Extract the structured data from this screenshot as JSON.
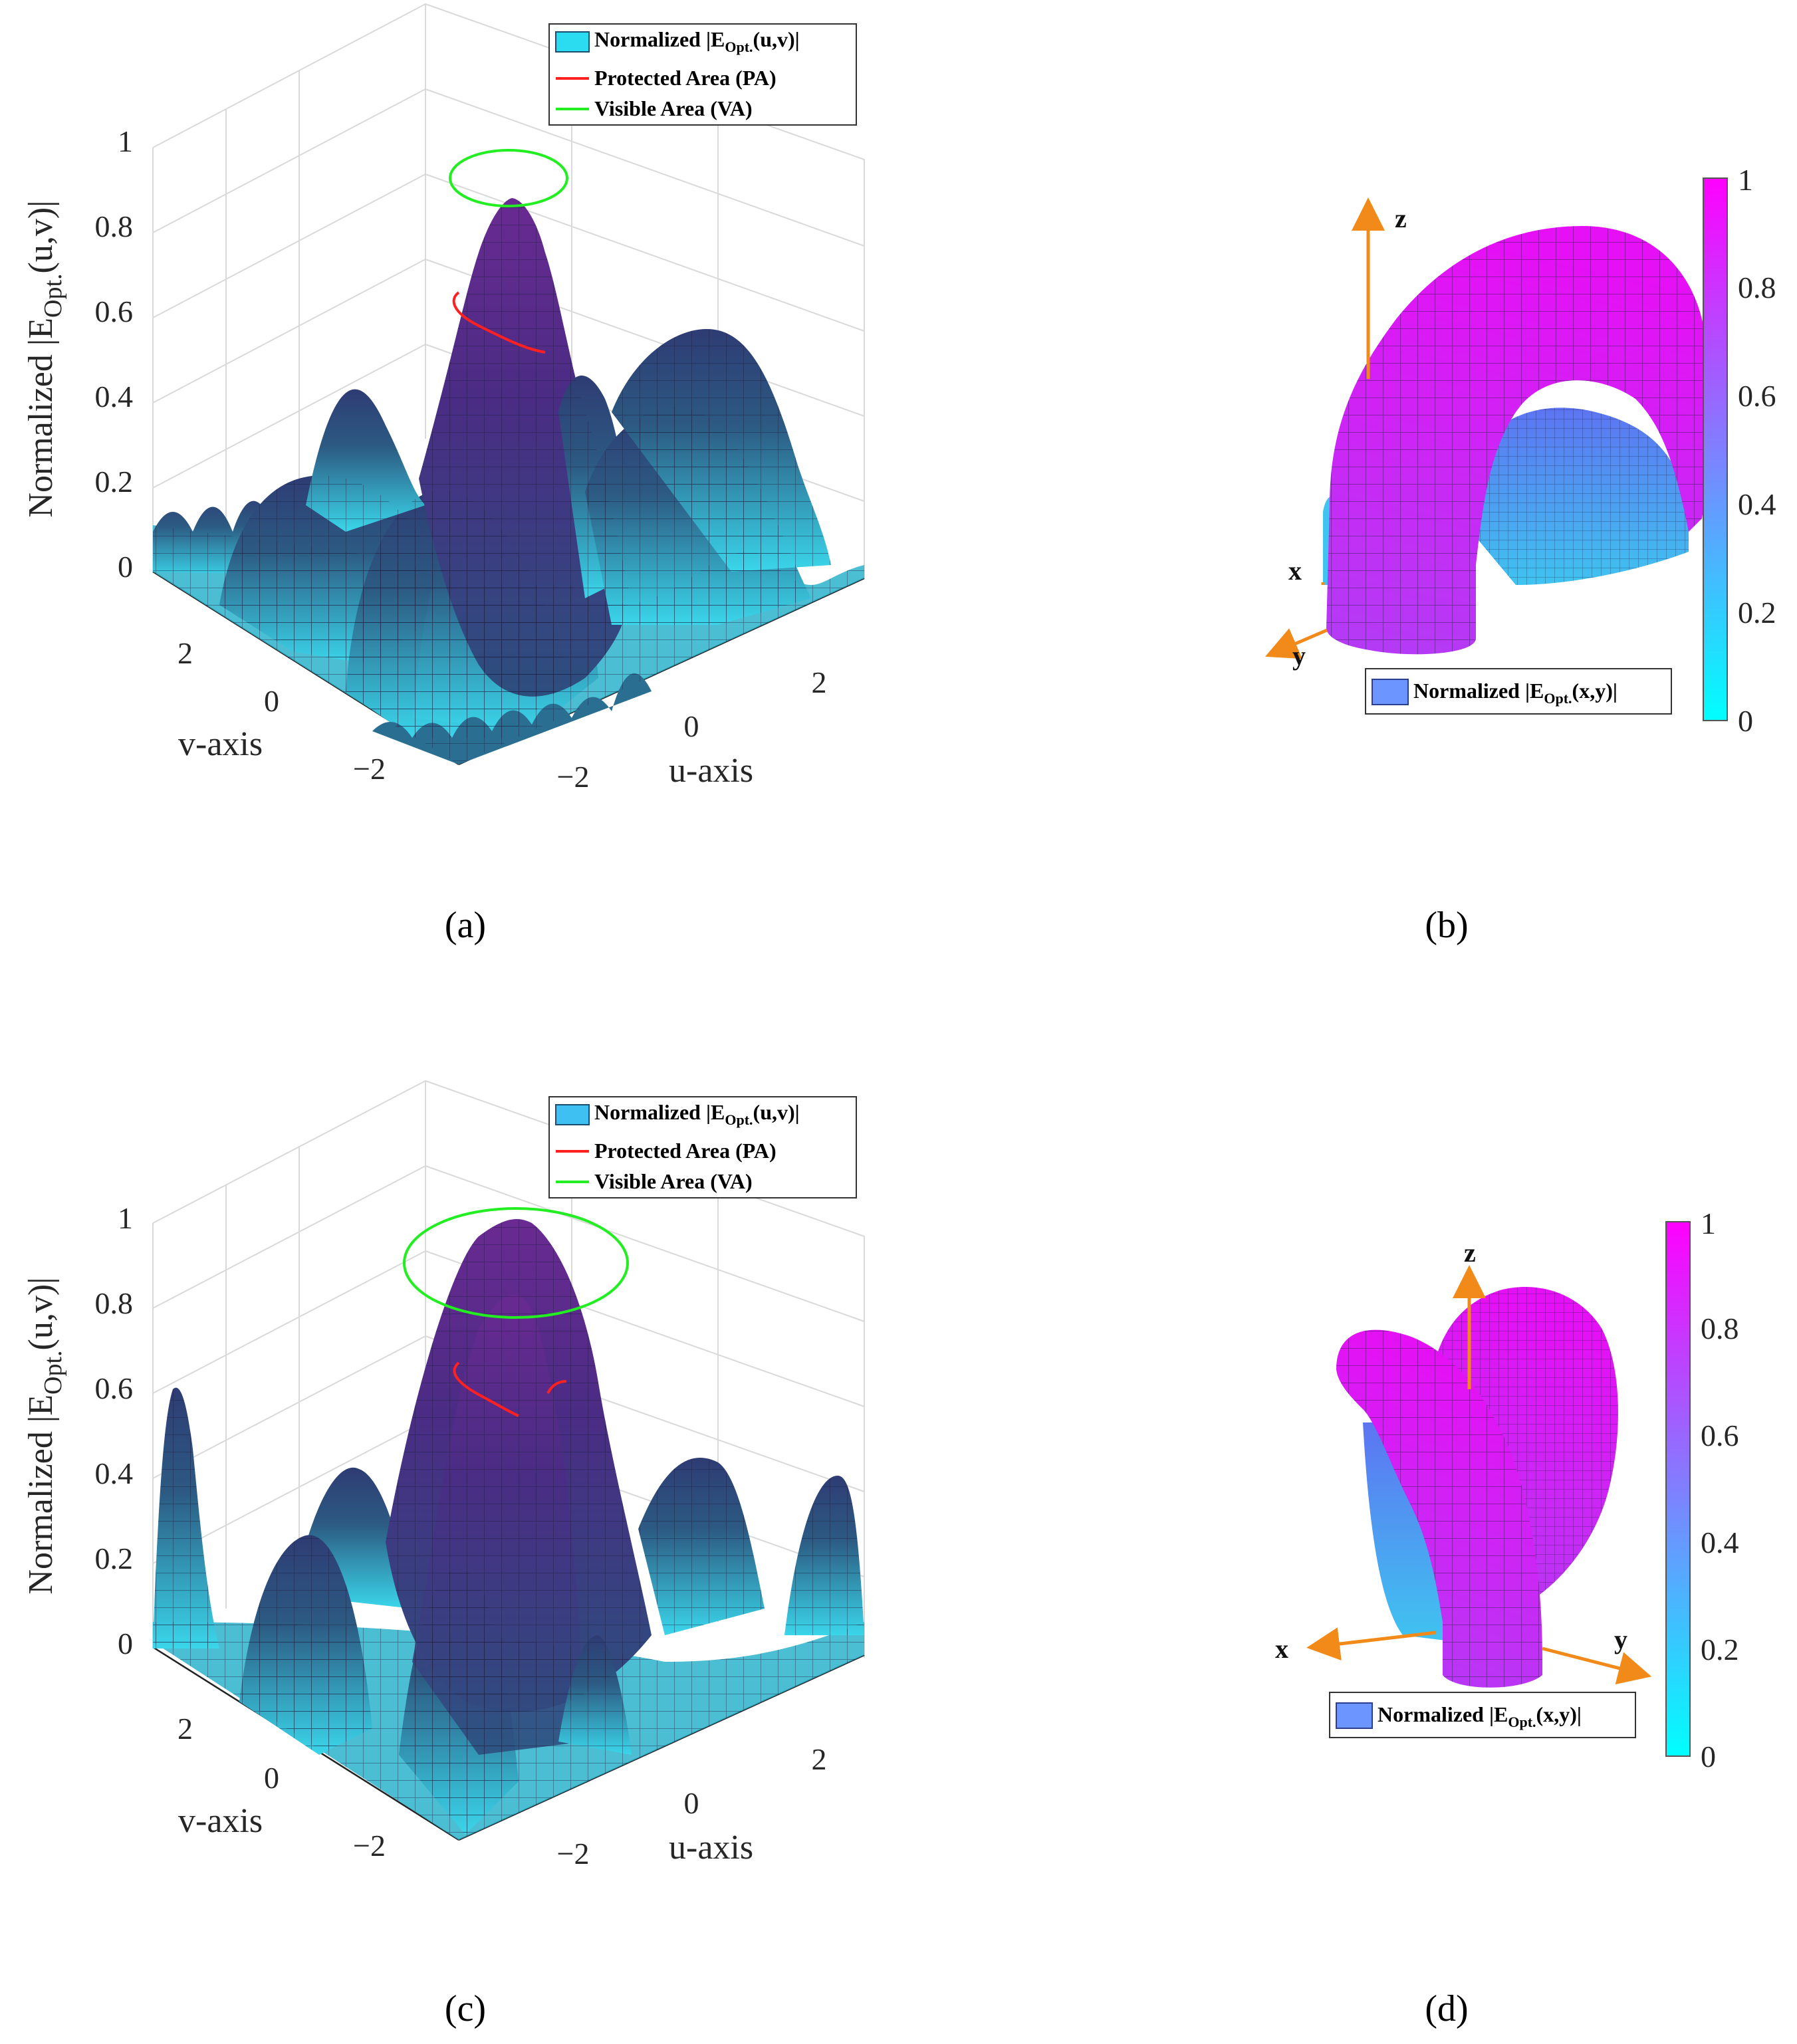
{
  "colors": {
    "surface_low": "#2bdcf0",
    "surface_mid": "#2a4f7a",
    "surface_peak": "#5a2a8a",
    "pa_line": "#ff2020",
    "va_line": "#22ee22",
    "colormap_low": "#00ffff",
    "colormap_high": "#ff00ff",
    "arrow": "#f28a1a",
    "legend_patch": "#6d95ff"
  },
  "chart_data": [
    {
      "panel": "a",
      "type": "surface",
      "caption": "(a)",
      "zlabel": "Normalized |E",
      "zlabel_sub": "Opt.",
      "zlabel_tail": "(u,v)|",
      "xlabel": "u-axis",
      "ylabel": "v-axis",
      "z_ticks": [
        "0",
        "0.2",
        "0.4",
        "0.6",
        "0.8",
        "1"
      ],
      "u_ticks": [
        "−2",
        "0",
        "2"
      ],
      "v_ticks": [
        "−2",
        "0",
        "2"
      ],
      "zlim": [
        0,
        1
      ],
      "peak_value": 0.89,
      "legend": [
        {
          "label": "Normalized |E",
          "sub": "Opt.",
          "tail": "(u,v)|",
          "kind": "patch",
          "color": "#2bdcf0"
        },
        {
          "label": "Protected Area (PA)",
          "kind": "line",
          "color": "#ff2020"
        },
        {
          "label": "Visible Area (VA)",
          "kind": "line",
          "color": "#22ee22"
        }
      ]
    },
    {
      "panel": "b",
      "type": "3d-pattern",
      "caption": "(b)",
      "axes": [
        "x",
        "y",
        "z"
      ],
      "legend": [
        {
          "label": "Normalized |E",
          "sub": "Opt.",
          "tail": "(x,y)|",
          "kind": "patch"
        }
      ],
      "colorbar_ticks": [
        "0",
        "0.2",
        "0.4",
        "0.6",
        "0.8",
        "1"
      ],
      "colorbar_range": [
        0,
        1
      ]
    },
    {
      "panel": "c",
      "type": "surface",
      "caption": "(c)",
      "zlabel": "Normalized |E",
      "zlabel_sub": "Opt.",
      "zlabel_tail": "(u,v)|",
      "xlabel": "u-axis",
      "ylabel": "v-axis",
      "z_ticks": [
        "0",
        "0.2",
        "0.4",
        "0.6",
        "0.8",
        "1"
      ],
      "u_ticks": [
        "−2",
        "0",
        "2"
      ],
      "v_ticks": [
        "−2",
        "0",
        "2"
      ],
      "zlim": [
        0,
        1
      ],
      "peak_value": 1.0,
      "legend": [
        {
          "label": "Normalized |E",
          "sub": "Opt.",
          "tail": "(u,v)|",
          "kind": "patch",
          "color": "#3ec0f2"
        },
        {
          "label": "Protected Area (PA)",
          "kind": "line",
          "color": "#ff2020"
        },
        {
          "label": "Visible Area (VA)",
          "kind": "line",
          "color": "#22ee22"
        }
      ]
    },
    {
      "panel": "d",
      "type": "3d-pattern",
      "caption": "(d)",
      "axes": [
        "x",
        "y",
        "z"
      ],
      "legend": [
        {
          "label": "Normalized |E",
          "sub": "Opt.",
          "tail": "(x,y)|",
          "kind": "patch"
        }
      ],
      "colorbar_ticks": [
        "0",
        "0.2",
        "0.4",
        "0.6",
        "0.8",
        "1"
      ],
      "colorbar_range": [
        0,
        1
      ]
    }
  ]
}
